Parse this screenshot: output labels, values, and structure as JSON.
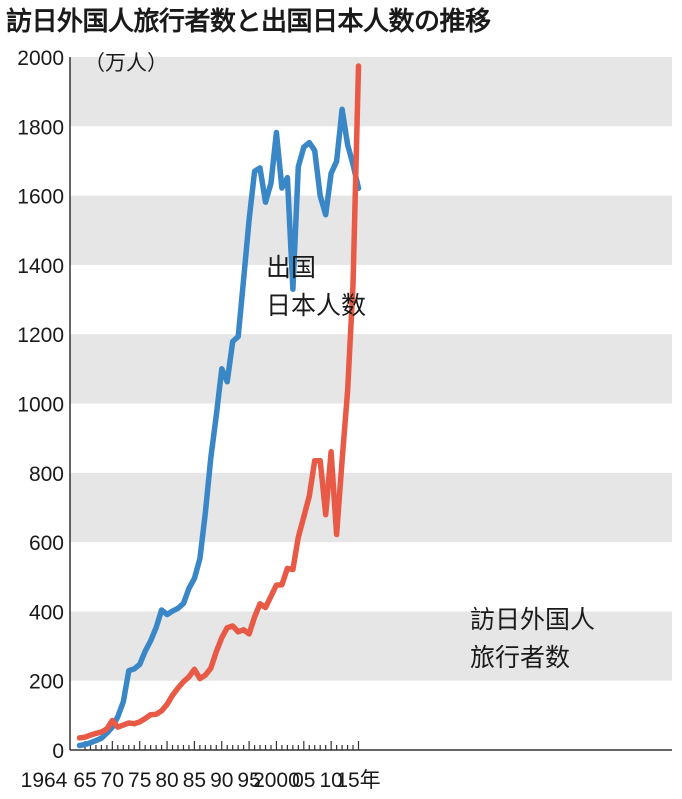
{
  "title": "訪日外国人旅行者数と出国日本人数の推移",
  "chart_data": {
    "type": "line",
    "unit_label": "（万人）",
    "x": [
      1964,
      1965,
      1966,
      1967,
      1968,
      1969,
      1970,
      1971,
      1972,
      1973,
      1974,
      1975,
      1976,
      1977,
      1978,
      1979,
      1980,
      1981,
      1982,
      1983,
      1984,
      1985,
      1986,
      1987,
      1988,
      1989,
      1990,
      1991,
      1992,
      1993,
      1994,
      1995,
      1996,
      1997,
      1998,
      1999,
      2000,
      2001,
      2002,
      2003,
      2004,
      2005,
      2006,
      2007,
      2008,
      2009,
      2010,
      2011,
      2012,
      2013,
      2014,
      2015
    ],
    "x_ticks": [
      {
        "value": 1964,
        "label": "1964"
      },
      {
        "value": 1965,
        "label": "65"
      },
      {
        "value": 1970,
        "label": "70"
      },
      {
        "value": 1975,
        "label": "75"
      },
      {
        "value": 1980,
        "label": "80"
      },
      {
        "value": 1985,
        "label": "85"
      },
      {
        "value": 1990,
        "label": "90"
      },
      {
        "value": 1995,
        "label": "95"
      },
      {
        "value": 2000,
        "label": "2000"
      },
      {
        "value": 2005,
        "label": "05"
      },
      {
        "value": 2010,
        "label": "10"
      },
      {
        "value": 2015,
        "label": "15年"
      }
    ],
    "y_ticks": [
      0,
      200,
      400,
      600,
      800,
      1000,
      1200,
      1400,
      1600,
      1800,
      2000
    ],
    "ylim": [
      0,
      2000
    ],
    "xlim": [
      1964,
      2017
    ],
    "grid": "alternating horizontal bands",
    "legend": "none (direct labels)",
    "series": [
      {
        "name": "出国日本人数",
        "label_lines": [
          "出国",
          "日本人数"
        ],
        "color": "#3a87c8",
        "values": [
          13,
          16,
          21,
          27,
          34,
          49,
          66,
          96,
          139,
          229,
          234,
          247,
          285,
          315,
          353,
          404,
          391,
          401,
          409,
          423,
          466,
          495,
          552,
          683,
          843,
          966,
          1100,
          1063,
          1179,
          1193,
          1358,
          1530,
          1670,
          1680,
          1581,
          1636,
          1782,
          1622,
          1652,
          1330,
          1683,
          1740,
          1753,
          1730,
          1599,
          1545,
          1664,
          1699,
          1849,
          1747,
          1690,
          1621
        ]
      },
      {
        "name": "訪日外国人旅行者数",
        "label_lines": [
          "訪日外国人",
          "旅行者数"
        ],
        "color": "#e85a45",
        "values": [
          35,
          37,
          43,
          48,
          52,
          61,
          85,
          66,
          72,
          78,
          76,
          81,
          91,
          102,
          103,
          113,
          132,
          158,
          179,
          197,
          211,
          233,
          206,
          216,
          236,
          284,
          324,
          353,
          358,
          341,
          347,
          335,
          384,
          422,
          411,
          444,
          476,
          477,
          524,
          521,
          614,
          673,
          733,
          835,
          835,
          679,
          861,
          622,
          836,
          1036,
          1341,
          1974
        ]
      }
    ]
  }
}
